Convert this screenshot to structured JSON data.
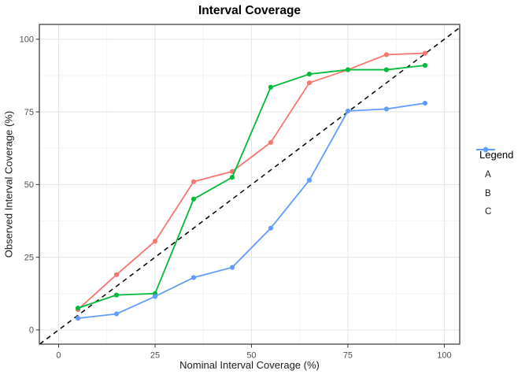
{
  "chart_data": {
    "type": "line",
    "title": "Interval Coverage",
    "xlabel": "Nominal Interval Coverage (%)",
    "ylabel": "Observed Interval Coverage (%)",
    "x": [
      5,
      15,
      25,
      35,
      45,
      55,
      65,
      75,
      85,
      95
    ],
    "series": [
      {
        "name": "A",
        "color": "#F8766D",
        "values": [
          7,
          19,
          30.5,
          51,
          54.5,
          64.5,
          85,
          89.5,
          94.7,
          95.2
        ]
      },
      {
        "name": "B",
        "color": "#00BA38",
        "values": [
          7.5,
          12,
          12.5,
          45,
          52.5,
          83.5,
          88,
          89.5,
          89.5,
          91
        ]
      },
      {
        "name": "C",
        "color": "#619CFF",
        "values": [
          4,
          5.5,
          11.5,
          18,
          21.5,
          35,
          51.5,
          75.3,
          76,
          78
        ]
      }
    ],
    "reference_line": {
      "type": "identity",
      "slope": 1,
      "intercept": 0,
      "style": "dashed",
      "color": "#000000"
    },
    "xticks": [
      0,
      25,
      50,
      75,
      100
    ],
    "yticks": [
      0,
      25,
      50,
      75,
      100
    ],
    "minor_xticks": [
      12.5,
      37.5,
      62.5,
      87.5
    ],
    "minor_yticks": [
      12.5,
      37.5,
      62.5,
      87.5
    ],
    "xlim": [
      -5,
      104
    ],
    "ylim": [
      -4.9,
      105.1
    ],
    "grid": "major+minor",
    "legend": {
      "title": "Legend",
      "position": "right",
      "entries": [
        "A",
        "B",
        "C"
      ]
    }
  },
  "colors": {
    "panel_border": "#333333",
    "grid_major": "#e5e5e5",
    "grid_minor": "#f0f0f0",
    "tick_mark": "#333333",
    "tick_text": "#4d4d4d",
    "background": "#ffffff"
  }
}
